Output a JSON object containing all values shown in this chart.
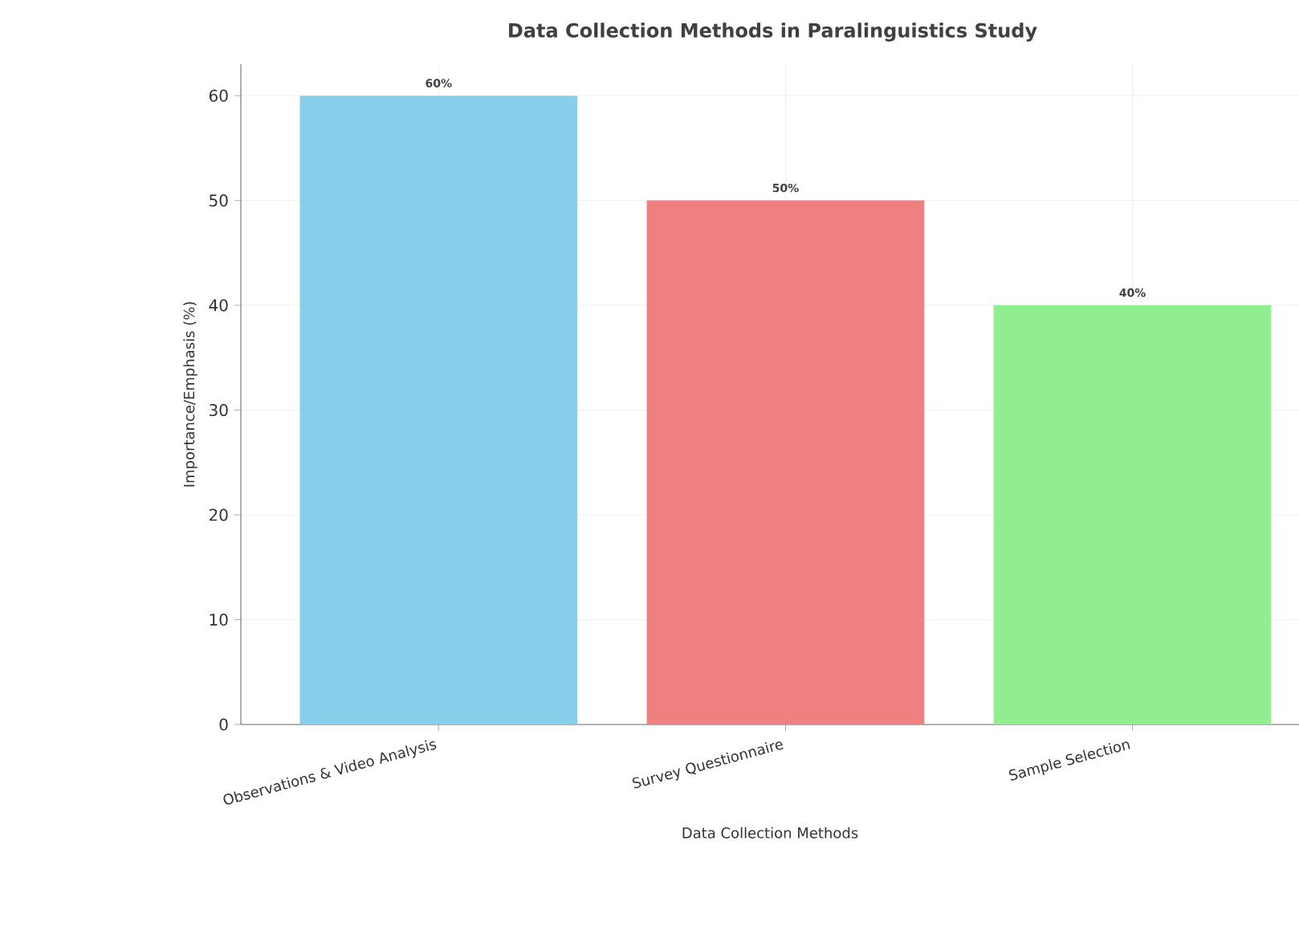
{
  "chart_data": {
    "type": "bar",
    "title": "Data Collection Methods in Paralinguistics Study",
    "xlabel": "Data Collection Methods",
    "ylabel": "Importance/Emphasis (%)",
    "categories": [
      "Observations & Video Analysis",
      "Survey Questionnaire",
      "Sample Selection"
    ],
    "values": [
      60,
      50,
      40
    ],
    "value_labels": [
      "60%",
      "50%",
      "40%"
    ],
    "colors": [
      "#87ceeb",
      "#f08080",
      "#90ee90"
    ],
    "ylim": [
      0,
      63
    ],
    "yticks": [
      0,
      10,
      20,
      30,
      40,
      50,
      60
    ],
    "grid": true
  }
}
